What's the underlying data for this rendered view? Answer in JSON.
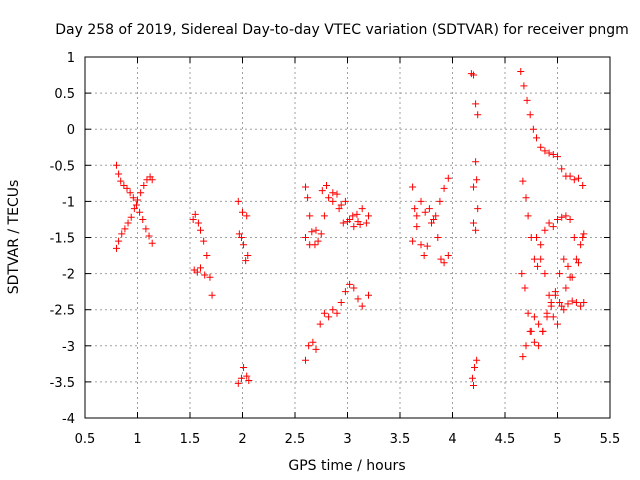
{
  "chart_data": {
    "type": "scatter",
    "title": "Day 258 of 2019, Sidereal Day-to-day VTEC variation (SDTVAR) for receiver pngm",
    "xlabel": "GPS time / hours",
    "ylabel": "SDTVAR / TECUs",
    "xlim": [
      0.5,
      5.5
    ],
    "ylim": [
      -4,
      1
    ],
    "xticks": [
      "0.5",
      "1",
      "1.5",
      "2",
      "2.5",
      "3",
      "3.5",
      "4",
      "4.5",
      "5",
      "5.5"
    ],
    "yticks": [
      "-4",
      "-3.5",
      "-3",
      "-2.5",
      "-2",
      "-1.5",
      "-1",
      "-0.5",
      "0",
      "0.5",
      "1"
    ],
    "grid": true,
    "marker": "+",
    "color": "#ff0000",
    "series": [
      {
        "name": "SDTVAR",
        "points": [
          [
            0.8,
            -0.5
          ],
          [
            0.82,
            -0.62
          ],
          [
            0.84,
            -0.72
          ],
          [
            0.87,
            -0.78
          ],
          [
            0.9,
            -0.82
          ],
          [
            0.93,
            -0.88
          ],
          [
            0.96,
            -0.95
          ],
          [
            0.99,
            -1.05
          ],
          [
            1.02,
            -1.15
          ],
          [
            1.05,
            -1.25
          ],
          [
            1.08,
            -1.38
          ],
          [
            1.11,
            -1.48
          ],
          [
            1.14,
            -1.58
          ],
          [
            0.8,
            -1.65
          ],
          [
            0.82,
            -1.55
          ],
          [
            0.85,
            -1.45
          ],
          [
            0.88,
            -1.38
          ],
          [
            0.91,
            -1.3
          ],
          [
            0.94,
            -1.22
          ],
          [
            0.97,
            -1.1
          ],
          [
            1.0,
            -0.98
          ],
          [
            1.03,
            -0.88
          ],
          [
            1.06,
            -0.78
          ],
          [
            1.09,
            -0.7
          ],
          [
            1.12,
            -0.66
          ],
          [
            1.14,
            -0.7
          ],
          [
            1.53,
            -1.25
          ],
          [
            1.55,
            -1.18
          ],
          [
            1.58,
            -1.3
          ],
          [
            1.6,
            -1.4
          ],
          [
            1.63,
            -1.55
          ],
          [
            1.66,
            -1.75
          ],
          [
            1.69,
            -2.05
          ],
          [
            1.71,
            -2.3
          ],
          [
            1.54,
            -1.95
          ],
          [
            1.57,
            -1.98
          ],
          [
            1.6,
            -1.92
          ],
          [
            1.64,
            -2.02
          ],
          [
            1.96,
            -1.0
          ],
          [
            1.97,
            -1.45
          ],
          [
            1.99,
            -1.5
          ],
          [
            2.01,
            -1.6
          ],
          [
            2.03,
            -1.82
          ],
          [
            2.05,
            -1.75
          ],
          [
            2.0,
            -1.15
          ],
          [
            2.04,
            -1.2
          ],
          [
            1.96,
            -3.52
          ],
          [
            1.99,
            -3.45
          ],
          [
            2.01,
            -3.3
          ],
          [
            2.04,
            -3.42
          ],
          [
            2.06,
            -3.48
          ],
          [
            2.6,
            -0.8
          ],
          [
            2.62,
            -0.95
          ],
          [
            2.64,
            -1.2
          ],
          [
            2.66,
            -1.42
          ],
          [
            2.69,
            -1.6
          ],
          [
            2.72,
            -1.55
          ],
          [
            2.75,
            -1.45
          ],
          [
            2.78,
            -1.2
          ],
          [
            2.82,
            -0.95
          ],
          [
            2.86,
            -1.0
          ],
          [
            2.9,
            -0.9
          ],
          [
            2.94,
            -1.05
          ],
          [
            2.98,
            -1.0
          ],
          [
            3.02,
            -1.25
          ],
          [
            3.06,
            -1.35
          ],
          [
            3.1,
            -1.28
          ],
          [
            3.14,
            -1.1
          ],
          [
            3.18,
            -1.3
          ],
          [
            3.2,
            -1.2
          ],
          [
            2.6,
            -1.5
          ],
          [
            2.64,
            -1.6
          ],
          [
            2.7,
            -1.4
          ],
          [
            2.76,
            -0.85
          ],
          [
            2.8,
            -0.78
          ],
          [
            2.86,
            -0.88
          ],
          [
            2.92,
            -1.1
          ],
          [
            2.96,
            -1.3
          ],
          [
            3.0,
            -1.28
          ],
          [
            3.05,
            -1.2
          ],
          [
            3.09,
            -1.18
          ],
          [
            3.12,
            -1.32
          ],
          [
            2.6,
            -3.2
          ],
          [
            2.63,
            -3.0
          ],
          [
            2.67,
            -2.95
          ],
          [
            2.7,
            -3.05
          ],
          [
            2.74,
            -2.7
          ],
          [
            2.78,
            -2.55
          ],
          [
            2.82,
            -2.6
          ],
          [
            2.86,
            -2.5
          ],
          [
            2.9,
            -2.55
          ],
          [
            2.94,
            -2.4
          ],
          [
            2.98,
            -2.25
          ],
          [
            3.02,
            -2.15
          ],
          [
            3.06,
            -2.2
          ],
          [
            3.1,
            -2.35
          ],
          [
            3.14,
            -2.45
          ],
          [
            3.2,
            -2.3
          ],
          [
            3.62,
            -0.8
          ],
          [
            3.64,
            -1.1
          ],
          [
            3.66,
            -1.35
          ],
          [
            3.7,
            -1.6
          ],
          [
            3.73,
            -1.75
          ],
          [
            3.76,
            -1.62
          ],
          [
            3.8,
            -1.3
          ],
          [
            3.84,
            -1.2
          ],
          [
            3.88,
            -1.0
          ],
          [
            3.92,
            -0.82
          ],
          [
            3.96,
            -0.68
          ],
          [
            3.62,
            -1.55
          ],
          [
            3.66,
            -1.2
          ],
          [
            3.7,
            -1.0
          ],
          [
            3.74,
            -1.15
          ],
          [
            3.78,
            -1.1
          ],
          [
            3.82,
            -1.25
          ],
          [
            3.86,
            -1.5
          ],
          [
            3.89,
            -1.8
          ],
          [
            3.92,
            -1.85
          ],
          [
            3.96,
            -1.75
          ],
          [
            4.18,
            0.77
          ],
          [
            4.2,
            0.75
          ],
          [
            4.22,
            0.35
          ],
          [
            4.24,
            0.2
          ],
          [
            4.2,
            -0.8
          ],
          [
            4.23,
            -0.7
          ],
          [
            4.22,
            -0.45
          ],
          [
            4.24,
            -1.1
          ],
          [
            4.2,
            -1.3
          ],
          [
            4.22,
            -1.4
          ],
          [
            4.19,
            -3.45
          ],
          [
            4.21,
            -3.3
          ],
          [
            4.23,
            -3.2
          ],
          [
            4.2,
            -3.55
          ],
          [
            4.65,
            0.8
          ],
          [
            4.68,
            0.6
          ],
          [
            4.71,
            0.4
          ],
          [
            4.74,
            0.2
          ],
          [
            4.77,
            0.0
          ],
          [
            4.8,
            -0.12
          ],
          [
            4.84,
            -0.25
          ],
          [
            4.88,
            -0.3
          ],
          [
            4.92,
            -0.33
          ],
          [
            4.96,
            -0.35
          ],
          [
            5.0,
            -0.38
          ],
          [
            5.04,
            -0.55
          ],
          [
            5.08,
            -0.65
          ],
          [
            5.12,
            -0.65
          ],
          [
            5.16,
            -0.7
          ],
          [
            5.2,
            -0.68
          ],
          [
            5.24,
            -0.78
          ],
          [
            4.67,
            -0.72
          ],
          [
            4.7,
            -0.95
          ],
          [
            4.72,
            -1.2
          ],
          [
            4.75,
            -1.5
          ],
          [
            4.78,
            -1.8
          ],
          [
            4.81,
            -1.9
          ],
          [
            4.84,
            -1.6
          ],
          [
            4.88,
            -1.4
          ],
          [
            4.92,
            -1.3
          ],
          [
            4.96,
            -1.35
          ],
          [
            5.0,
            -1.25
          ],
          [
            5.04,
            -1.22
          ],
          [
            5.08,
            -1.2
          ],
          [
            5.12,
            -1.25
          ],
          [
            5.16,
            -1.5
          ],
          [
            5.2,
            -1.85
          ],
          [
            5.24,
            -1.5
          ],
          [
            4.66,
            -2.0
          ],
          [
            4.69,
            -2.2
          ],
          [
            4.72,
            -2.55
          ],
          [
            4.75,
            -2.8
          ],
          [
            4.78,
            -2.95
          ],
          [
            4.82,
            -3.0
          ],
          [
            4.86,
            -2.8
          ],
          [
            4.9,
            -2.55
          ],
          [
            4.94,
            -2.4
          ],
          [
            4.98,
            -2.3
          ],
          [
            5.02,
            -2.4
          ],
          [
            5.06,
            -2.5
          ],
          [
            5.1,
            -2.42
          ],
          [
            5.14,
            -2.38
          ],
          [
            5.18,
            -2.4
          ],
          [
            5.22,
            -2.45
          ],
          [
            5.25,
            -2.4
          ],
          [
            4.67,
            -3.15
          ],
          [
            4.7,
            -3.0
          ],
          [
            4.74,
            -2.8
          ],
          [
            4.78,
            -2.6
          ],
          [
            4.82,
            -2.7
          ],
          [
            4.86,
            -2.8
          ],
          [
            4.9,
            -2.6
          ],
          [
            4.94,
            -2.45
          ],
          [
            4.98,
            -2.25
          ],
          [
            5.02,
            -2.0
          ],
          [
            5.06,
            -1.8
          ],
          [
            5.1,
            -1.9
          ],
          [
            5.14,
            -2.05
          ],
          [
            5.18,
            -1.8
          ],
          [
            5.22,
            -1.6
          ],
          [
            5.25,
            -1.45
          ],
          [
            4.8,
            -1.5
          ],
          [
            4.84,
            -1.8
          ],
          [
            4.88,
            -2.0
          ],
          [
            4.92,
            -2.3
          ],
          [
            4.96,
            -2.6
          ],
          [
            5.0,
            -2.7
          ],
          [
            5.04,
            -2.45
          ],
          [
            5.08,
            -2.2
          ],
          [
            5.12,
            -2.05
          ]
        ]
      }
    ]
  }
}
